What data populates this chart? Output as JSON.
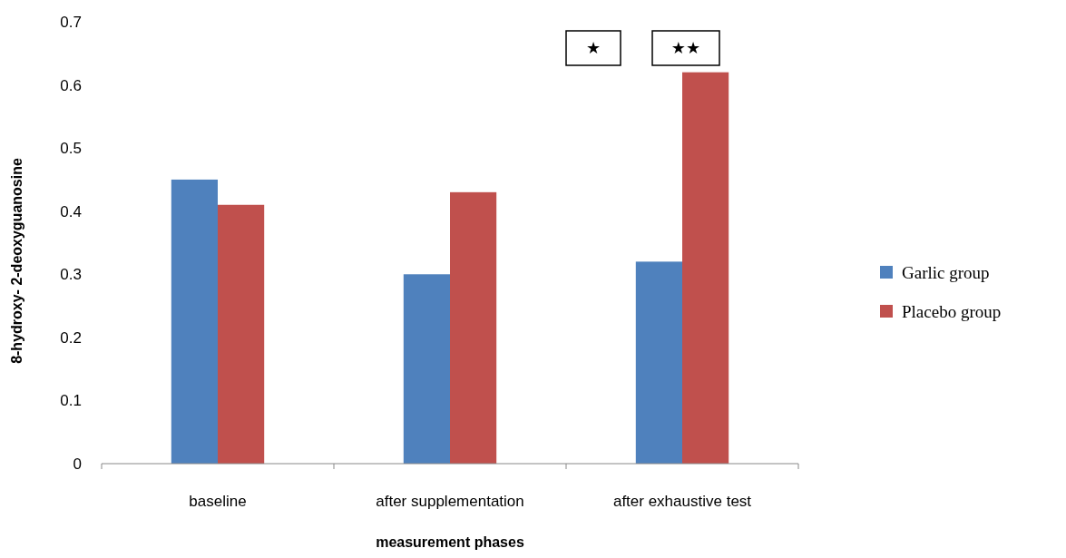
{
  "chart_data": {
    "type": "bar",
    "xlabel": "measurement phases",
    "ylabel": "8-hydroxy- 2-deoxyguanosine",
    "categories": [
      "baseline",
      "after supplementation",
      "after exhaustive test"
    ],
    "series": [
      {
        "name": "Garlic group",
        "color": "#4f81bd",
        "values": [
          0.45,
          0.3,
          0.32
        ]
      },
      {
        "name": "Placebo group",
        "color": "#c0504d",
        "values": [
          0.41,
          0.43,
          0.62
        ]
      }
    ],
    "ylim": [
      0,
      0.7
    ],
    "yticks": [
      {
        "value": 0,
        "label": "0"
      },
      0.1,
      0.2,
      0.3,
      0.4,
      0.5,
      0.6,
      0.7
    ],
    "annotations": [
      "★",
      "★★"
    ],
    "legend": "right",
    "grid": false
  }
}
